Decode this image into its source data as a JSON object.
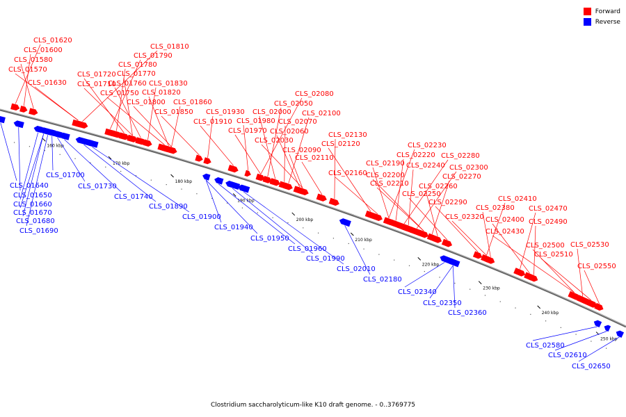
{
  "caption": "Clostridium saccharolyticum-like K10 draft genome. - 0..3769775",
  "colors": {
    "forward": "#ff0000",
    "reverse": "#0000ff"
  },
  "legend": [
    {
      "label": "Forward",
      "strand": "forward"
    },
    {
      "label": "Reverse",
      "strand": "reverse"
    }
  ],
  "ticks": [
    "160 kbp",
    "170 kbp",
    "180 kbp",
    "190 kbp",
    "200 kbp",
    "210 kbp",
    "220 kbp",
    "230 kbp",
    "240 kbp",
    "250 kbp"
  ],
  "forward_labels": [
    "CLS_01620",
    "CLS_01600",
    "CLS_01580",
    "CLS_01570",
    "CLS_01630",
    "CLS_01810",
    "CLS_01790",
    "CLS_01780",
    "CLS_01720",
    "CLS_01770",
    "CLS_01710",
    "CLS_01760",
    "CLS_01830",
    "CLS_01750",
    "CLS_01820",
    "CLS_01800",
    "CLS_01860",
    "CLS_01850",
    "CLS_01930",
    "CLS_01910",
    "CLS_01980",
    "CLS_01970",
    "CLS_02080",
    "CLS_02050",
    "CLS_02000",
    "CLS_02070",
    "CLS_02100",
    "CLS_02060",
    "CLS_02030",
    "CLS_02090",
    "CLS_02110",
    "CLS_02130",
    "CLS_02120",
    "CLS_02160",
    "CLS_02230",
    "CLS_02190",
    "CLS_02220",
    "CLS_02280",
    "CLS_02240",
    "CLS_02300",
    "CLS_02200",
    "CLS_02210",
    "CLS_02270",
    "CLS_02260",
    "CLS_02250",
    "CLS_02290",
    "CLS_02320",
    "CLS_02410",
    "CLS_02380",
    "CLS_02470",
    "CLS_02400",
    "CLS_02490",
    "CLS_02430",
    "CLS_02500",
    "CLS_02530",
    "CLS_02510",
    "CLS_02550"
  ],
  "reverse_labels": [
    "CLS_01640",
    "CLS_01650",
    "CLS_01660",
    "CLS_01670",
    "CLS_01680",
    "CLS_01690",
    "CLS_01700",
    "CLS_01730",
    "CLS_01740",
    "CLS_01890",
    "CLS_01900",
    "CLS_01940",
    "CLS_01950",
    "CLS_01960",
    "CLS_01990",
    "CLS_02010",
    "CLS_02180",
    "CLS_02340",
    "CLS_02350",
    "CLS_02360",
    "CLS_02580",
    "CLS_02610",
    "CLS_02650"
  ]
}
